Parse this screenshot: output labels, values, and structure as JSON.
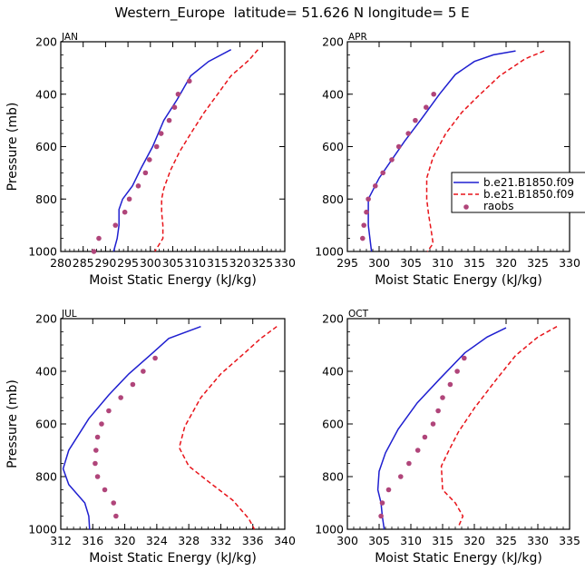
{
  "title": "Western_Europe  latitude= 51.626 N longitude= 5 E",
  "colors": {
    "model1": "#1f1fd0",
    "model2": "#e8141a",
    "obs": "#b0457a",
    "axis": "#000000"
  },
  "legend": [
    {
      "label": "b.e21.B1850.f09",
      "style": "solid",
      "color": "#1f1fd0"
    },
    {
      "label": "b.e21.B1850.f09",
      "style": "dashed",
      "color": "#e8141a"
    },
    {
      "label": "raobs",
      "style": "marker",
      "color": "#b0457a"
    }
  ],
  "chart_data": [
    {
      "type": "line",
      "label": "JAN",
      "xlabel": "Moist Static Energy (kJ/kg)",
      "ylabel": "Pressure (mb)",
      "xlim": [
        280,
        330
      ],
      "xticks": [
        280,
        285,
        290,
        295,
        300,
        305,
        310,
        315,
        320,
        325,
        330
      ],
      "ylim": [
        1000,
        200
      ],
      "yticks": [
        200,
        400,
        600,
        800,
        1000
      ],
      "series": [
        {
          "name": "b.e21.B1850.f09",
          "style": "solid",
          "points": [
            [
              318.0,
              230
            ],
            [
              313.0,
              275
            ],
            [
              309.0,
              330
            ],
            [
              306.0,
              420
            ],
            [
              303.0,
              500
            ],
            [
              300.5,
              600
            ],
            [
              298.0,
              680
            ],
            [
              296.0,
              750
            ],
            [
              293.8,
              800
            ],
            [
              293.0,
              840
            ],
            [
              293.0,
              900
            ],
            [
              292.6,
              950
            ],
            [
              291.8,
              1000
            ]
          ]
        },
        {
          "name": "b.e21.B1850.f09",
          "style": "dashed",
          "points": [
            [
              324.0,
              230
            ],
            [
              322.0,
              270
            ],
            [
              318.0,
              330
            ],
            [
              315.0,
              400
            ],
            [
              312.0,
              470
            ],
            [
              309.0,
              550
            ],
            [
              306.5,
              620
            ],
            [
              304.5,
              690
            ],
            [
              303.0,
              760
            ],
            [
              302.5,
              800
            ],
            [
              302.5,
              850
            ],
            [
              302.8,
              900
            ],
            [
              302.8,
              950
            ],
            [
              301.0,
              1000
            ]
          ]
        },
        {
          "name": "raobs",
          "style": "marker",
          "points": [
            [
              308.7,
              350
            ],
            [
              306.2,
              400
            ],
            [
              305.4,
              450
            ],
            [
              304.2,
              500
            ],
            [
              302.4,
              550
            ],
            [
              301.4,
              600
            ],
            [
              299.8,
              650
            ],
            [
              298.9,
              700
            ],
            [
              297.3,
              750
            ],
            [
              295.3,
              800
            ],
            [
              294.3,
              850
            ],
            [
              292.2,
              900
            ],
            [
              288.5,
              950
            ],
            [
              287.4,
              1000
            ]
          ]
        }
      ]
    },
    {
      "type": "line",
      "label": "APR",
      "xlabel": "Moist Static Energy (kJ/kg)",
      "ylabel": "",
      "xlim": [
        295,
        330
      ],
      "xticks": [
        295,
        300,
        305,
        310,
        315,
        320,
        325,
        330
      ],
      "ylim": [
        1000,
        200
      ],
      "yticks": [
        200,
        400,
        600,
        800,
        1000
      ],
      "series": [
        {
          "name": "b.e21.B1850.f09",
          "style": "solid",
          "points": [
            [
              321.5,
              235
            ],
            [
              318.0,
              250
            ],
            [
              315.0,
              275
            ],
            [
              312.0,
              325
            ],
            [
              309.5,
              400
            ],
            [
              306.5,
              500
            ],
            [
              304.0,
              580
            ],
            [
              302.0,
              650
            ],
            [
              300.0,
              720
            ],
            [
              298.3,
              800
            ],
            [
              298.3,
              900
            ],
            [
              298.8,
              1000
            ]
          ]
        },
        {
          "name": "b.e21.B1850.f09",
          "style": "dashed",
          "points": [
            [
              326.0,
              235
            ],
            [
              323.0,
              265
            ],
            [
              319.0,
              330
            ],
            [
              315.5,
              410
            ],
            [
              313.0,
              470
            ],
            [
              310.5,
              550
            ],
            [
              308.5,
              640
            ],
            [
              307.5,
              720
            ],
            [
              307.5,
              800
            ],
            [
              307.8,
              860
            ],
            [
              308.2,
              920
            ],
            [
              308.5,
              970
            ],
            [
              307.6,
              1000
            ]
          ]
        },
        {
          "name": "raobs",
          "style": "marker",
          "points": [
            [
              308.6,
              400
            ],
            [
              307.4,
              450
            ],
            [
              305.7,
              500
            ],
            [
              304.6,
              550
            ],
            [
              303.1,
              600
            ],
            [
              302.0,
              650
            ],
            [
              300.6,
              700
            ],
            [
              299.4,
              750
            ],
            [
              298.3,
              800
            ],
            [
              298.0,
              850
            ],
            [
              297.6,
              900
            ],
            [
              297.4,
              950
            ]
          ]
        }
      ]
    },
    {
      "type": "line",
      "label": "JUL",
      "xlabel": "Moist Static Energy (kJ/kg)",
      "ylabel": "Pressure (mb)",
      "xlim": [
        312,
        340
      ],
      "xticks": [
        312,
        316,
        320,
        324,
        328,
        332,
        336,
        340
      ],
      "ylim": [
        1000,
        200
      ],
      "yticks": [
        200,
        400,
        600,
        800,
        1000
      ],
      "series": [
        {
          "name": "b.e21.B1850.f09",
          "style": "solid",
          "points": [
            [
              329.5,
              230
            ],
            [
              325.5,
              275
            ],
            [
              323.5,
              330
            ],
            [
              320.5,
              410
            ],
            [
              318.0,
              490
            ],
            [
              315.5,
              580
            ],
            [
              313.0,
              700
            ],
            [
              312.3,
              770
            ],
            [
              313.0,
              830
            ],
            [
              315.0,
              900
            ],
            [
              315.5,
              950
            ],
            [
              315.6,
              1000
            ]
          ]
        },
        {
          "name": "b.e21.B1850.f09",
          "style": "dashed",
          "points": [
            [
              339.0,
              230
            ],
            [
              337.0,
              275
            ],
            [
              335.0,
              330
            ],
            [
              332.0,
              410
            ],
            [
              329.5,
              500
            ],
            [
              327.5,
              610
            ],
            [
              326.8,
              690
            ],
            [
              328.0,
              760
            ],
            [
              330.5,
              820
            ],
            [
              333.5,
              890
            ],
            [
              335.5,
              960
            ],
            [
              336.2,
              1000
            ]
          ]
        },
        {
          "name": "raobs",
          "style": "marker",
          "points": [
            [
              323.8,
              350
            ],
            [
              322.3,
              400
            ],
            [
              321.0,
              450
            ],
            [
              319.5,
              500
            ],
            [
              318.0,
              550
            ],
            [
              317.1,
              600
            ],
            [
              316.6,
              650
            ],
            [
              316.4,
              700
            ],
            [
              316.3,
              750
            ],
            [
              316.6,
              800
            ],
            [
              317.5,
              850
            ],
            [
              318.6,
              900
            ],
            [
              318.9,
              950
            ]
          ]
        }
      ]
    },
    {
      "type": "line",
      "label": "OCT",
      "xlabel": "Moist Static Energy (kJ/kg)",
      "ylabel": "",
      "xlim": [
        300,
        335
      ],
      "xticks": [
        300,
        305,
        310,
        315,
        320,
        325,
        330,
        335
      ],
      "ylim": [
        1000,
        200
      ],
      "yticks": [
        200,
        400,
        600,
        800,
        1000
      ],
      "series": [
        {
          "name": "b.e21.B1850.f09",
          "style": "solid",
          "points": [
            [
              325.0,
              235
            ],
            [
              322.0,
              270
            ],
            [
              318.5,
              330
            ],
            [
              314.5,
              430
            ],
            [
              311.0,
              520
            ],
            [
              308.0,
              620
            ],
            [
              306.0,
              710
            ],
            [
              305.0,
              780
            ],
            [
              304.8,
              850
            ],
            [
              305.3,
              900
            ],
            [
              305.5,
              950
            ],
            [
              305.8,
              1000
            ]
          ]
        },
        {
          "name": "b.e21.B1850.f09",
          "style": "dashed",
          "points": [
            [
              333.0,
              230
            ],
            [
              330.0,
              270
            ],
            [
              326.5,
              340
            ],
            [
              323.5,
              430
            ],
            [
              320.0,
              540
            ],
            [
              317.5,
              630
            ],
            [
              316.0,
              700
            ],
            [
              314.8,
              760
            ],
            [
              315.0,
              850
            ],
            [
              317.0,
              900
            ],
            [
              318.2,
              950
            ],
            [
              317.5,
              990
            ]
          ]
        },
        {
          "name": "raobs",
          "style": "marker",
          "points": [
            [
              318.4,
              350
            ],
            [
              317.3,
              400
            ],
            [
              316.2,
              450
            ],
            [
              315.0,
              500
            ],
            [
              314.3,
              550
            ],
            [
              313.5,
              600
            ],
            [
              312.2,
              650
            ],
            [
              311.1,
              700
            ],
            [
              309.7,
              750
            ],
            [
              308.4,
              800
            ],
            [
              306.5,
              850
            ],
            [
              305.5,
              900
            ],
            [
              305.3,
              950
            ]
          ]
        }
      ]
    }
  ]
}
